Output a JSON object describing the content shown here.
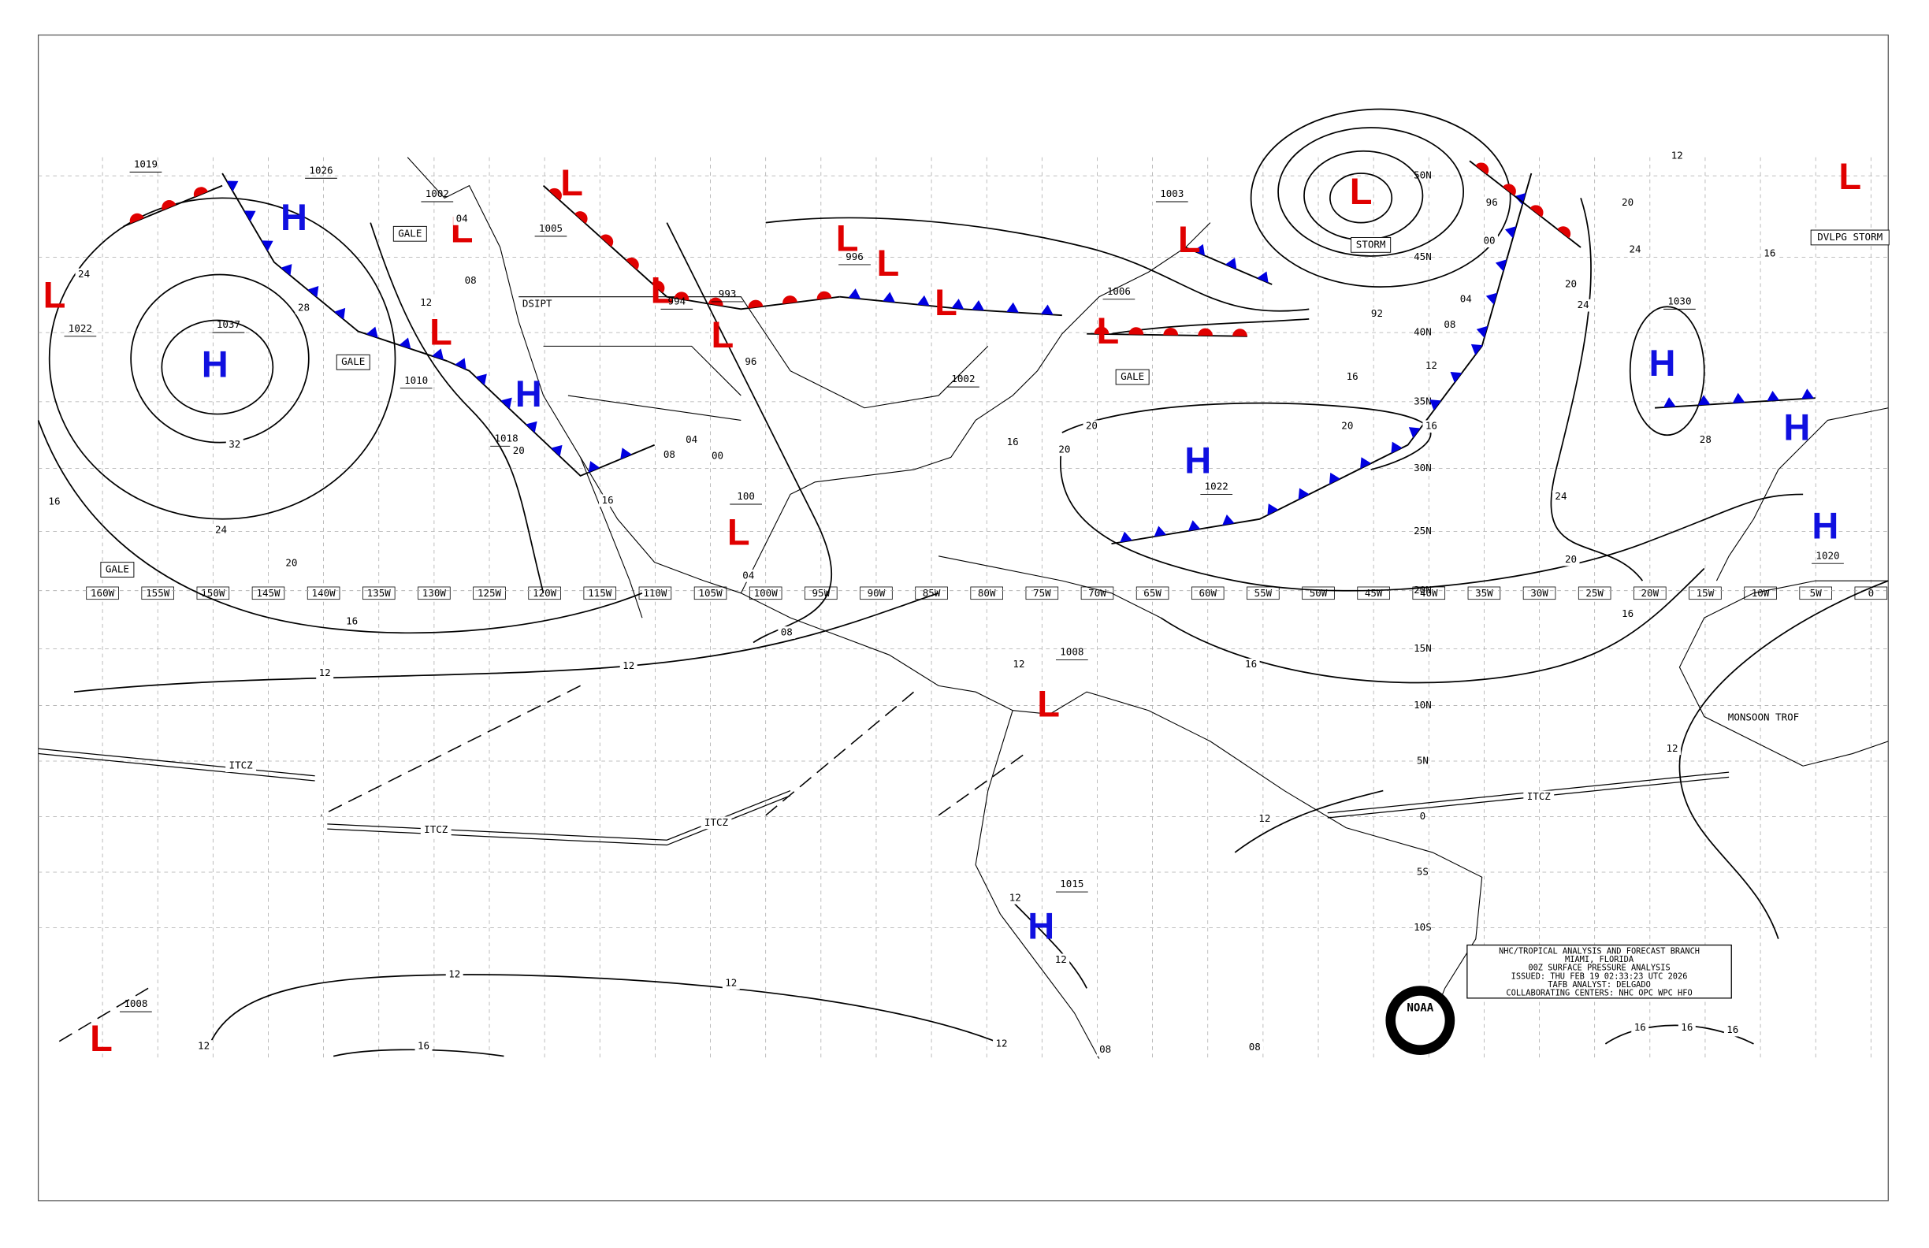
{
  "longitude_labels": [
    "160W",
    "155W",
    "150W",
    "145W",
    "140W",
    "135W",
    "130W",
    "125W",
    "120W",
    "115W",
    "110W",
    "105W",
    "100W",
    "95W",
    "90W",
    "85W",
    "80W",
    "75W",
    "70W",
    "65W",
    "60W",
    "55W",
    "50W",
    "45W",
    "40W",
    "35W",
    "30W",
    "25W",
    "20W",
    "15W",
    "10W",
    "5W",
    "0"
  ],
  "latitude_labels": [
    "50N",
    "45N",
    "40N",
    "35N",
    "30N",
    "25N",
    "20N",
    "15N",
    "10N",
    "5N",
    "0",
    "5S",
    "10S"
  ],
  "pressure_centers": [
    {
      "letter": "H",
      "label": "1037"
    },
    {
      "letter": "H",
      "label": "1026"
    },
    {
      "letter": "L",
      "label": "1022"
    },
    {
      "letter": "L",
      "label": "1002"
    },
    {
      "letter": "L"
    },
    {
      "letter": "L",
      "label": "1005"
    },
    {
      "letter": "L",
      "label": "994"
    },
    {
      "letter": "L",
      "label": "993"
    },
    {
      "letter": "L"
    },
    {
      "letter": "L",
      "label": "996"
    },
    {
      "letter": "L"
    },
    {
      "letter": "L",
      "label": "1003"
    },
    {
      "letter": "L",
      "label": "1006"
    },
    {
      "letter": "L"
    },
    {
      "letter": "L"
    },
    {
      "letter": "L",
      "label": "100"
    },
    {
      "letter": "L",
      "label": "1008"
    },
    {
      "letter": "L",
      "label": "1008"
    },
    {
      "letter": "H"
    },
    {
      "letter": "H",
      "label": "1022"
    },
    {
      "letter": "H",
      "label": "1030"
    },
    {
      "letter": "H"
    },
    {
      "letter": "H",
      "label": "1020"
    },
    {
      "letter": "H",
      "label": "1015"
    }
  ],
  "pressure_labels": [
    "1019",
    "1010",
    "1018",
    "1002"
  ],
  "isobar_labels": [
    "24",
    "28",
    "32",
    "24",
    "20",
    "16",
    "16",
    "12",
    "12",
    "12",
    "20",
    "08",
    "04",
    "16",
    "08",
    "04",
    "00",
    "96",
    "16",
    "20",
    "20",
    "16",
    "20",
    "12",
    "16",
    "08",
    "04",
    "00",
    "96",
    "92",
    "20",
    "24",
    "24",
    "20",
    "12",
    "16",
    "28",
    "24",
    "20",
    "16",
    "16",
    "12",
    "04",
    "08",
    "12",
    "12",
    "12",
    "12",
    "12",
    "12",
    "12",
    "12",
    "16",
    "16",
    "16",
    "16",
    "08",
    "08"
  ],
  "feature_labels": [
    "GALE",
    "GALE",
    "GALE",
    "GALE",
    "STORM",
    "DVLPG STORM",
    "DSIPT",
    "ITCZ",
    "ITCZ",
    "ITCZ",
    "ITCZ",
    "MONSOON TROF"
  ],
  "info_box": [
    "NHC/TROPICAL ANALYSIS AND FORECAST BRANCH",
    "MIAMI, FLORIDA",
    "00Z SURFACE PRESSURE ANALYSIS",
    "ISSUED: THU FEB 19 02:33:23 UTC 2026",
    "TAFB ANALYST: DELGADO",
    "COLLABORATING CENTERS: NHC OPC WPC HFO"
  ],
  "logo": "NOAA"
}
